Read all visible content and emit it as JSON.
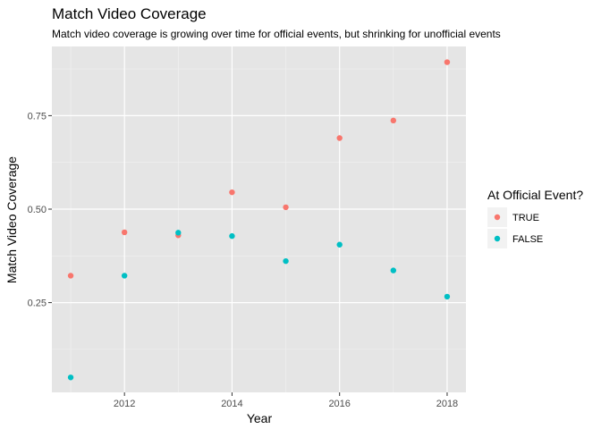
{
  "chart_data": {
    "type": "scatter",
    "title": "Match Video Coverage",
    "subtitle": "Match video coverage is growing over time for official events, but shrinking for unofficial events",
    "xlabel": "Year",
    "ylabel": "Match Video Coverage",
    "xlim": [
      2010.65,
      2018.35
    ],
    "ylim": [
      0.01,
      0.935
    ],
    "x_ticks": [
      2012,
      2014,
      2016,
      2018
    ],
    "x_minor": [
      2011,
      2013,
      2015,
      2017
    ],
    "y_ticks": [
      0.25,
      0.5,
      0.75
    ],
    "y_tick_labels": [
      "0.25",
      "0.50",
      "0.75"
    ],
    "y_minor": [
      0.125,
      0.375,
      0.625,
      0.875
    ],
    "grid": true,
    "background": "#e5e5e5",
    "legend": {
      "title": "At Official Event?",
      "placement": "right"
    },
    "series": [
      {
        "name": "TRUE",
        "color": "#f8766d",
        "x": [
          2011,
          2012,
          2013,
          2014,
          2015,
          2016,
          2017,
          2018
        ],
        "y": [
          0.322,
          0.438,
          0.43,
          0.545,
          0.505,
          0.69,
          0.737,
          0.893
        ]
      },
      {
        "name": "FALSE",
        "color": "#00bfc4",
        "x": [
          2011,
          2012,
          2013,
          2014,
          2015,
          2016,
          2017,
          2018
        ],
        "y": [
          0.05,
          0.322,
          0.437,
          0.428,
          0.361,
          0.405,
          0.336,
          0.266
        ]
      }
    ]
  }
}
